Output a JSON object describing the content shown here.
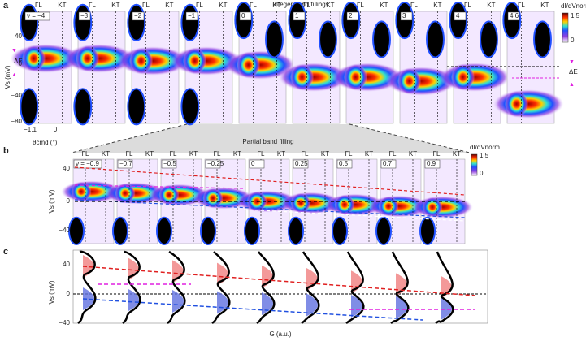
{
  "panel_a": {
    "label": "a",
    "title": "Integer band fillings",
    "fillings": [
      "ν = −4",
      "−3",
      "−2",
      "−1",
      "0",
      "1",
      "2",
      "3",
      "4",
      "4.6"
    ],
    "momentum_labels": [
      "ΓL",
      "KT"
    ],
    "y_label": "Vs (mV)",
    "yticks": [
      "40",
      "0",
      "−40",
      "−80"
    ],
    "x_label": "θcmd (°)",
    "xticks": [
      "−1.1",
      "0"
    ],
    "delta": "ΔE",
    "colorbar": {
      "label": "dI/dVnorm",
      "ticks": [
        "1.5",
        "0"
      ]
    }
  },
  "panel_b": {
    "label": "b",
    "title": "Partial band filling",
    "fillings": [
      "ν = −0.9",
      "−0.7",
      "−0.5",
      "−0.25",
      "0",
      "0.25",
      "0.5",
      "0.7",
      "0.9"
    ],
    "momentum_labels": [
      "ΓL",
      "KT"
    ],
    "y_label": "Vs (mV)",
    "yticks": [
      "40",
      "0",
      "−40"
    ],
    "colorbar": {
      "label": "dI/dVnorm",
      "ticks": [
        "1.5",
        "0"
      ]
    }
  },
  "panel_c": {
    "label": "c",
    "y_label": "Vs (mV)",
    "yticks": [
      "40",
      "0",
      "−40"
    ],
    "x_label": "G (a.u.)"
  }
}
